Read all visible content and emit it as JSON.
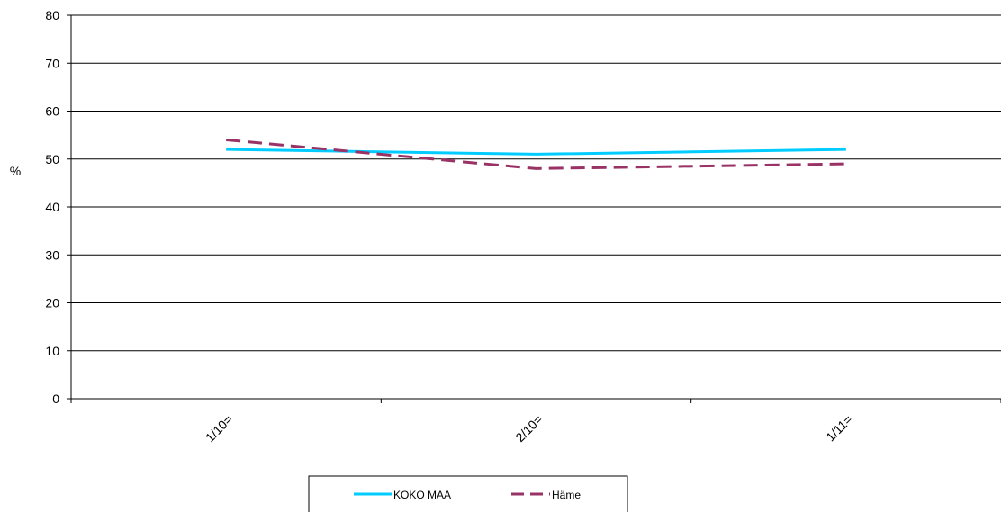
{
  "chart_data": {
    "type": "line",
    "title": "",
    "xlabel": "",
    "ylabel": "%",
    "ylim": [
      0,
      80
    ],
    "yticks": [
      0,
      10,
      20,
      30,
      40,
      50,
      60,
      70,
      80
    ],
    "categories": [
      "1/10=",
      "2/10=",
      "1/11="
    ],
    "grid": true,
    "legend_position": "bottom",
    "series": [
      {
        "name": "KOKO MAA",
        "values": [
          52,
          51,
          52
        ],
        "color": "#00ccff",
        "style": "solid"
      },
      {
        "name": "Häme",
        "values": [
          54,
          48,
          49
        ],
        "color": "#993366",
        "style": "dashed"
      }
    ]
  }
}
